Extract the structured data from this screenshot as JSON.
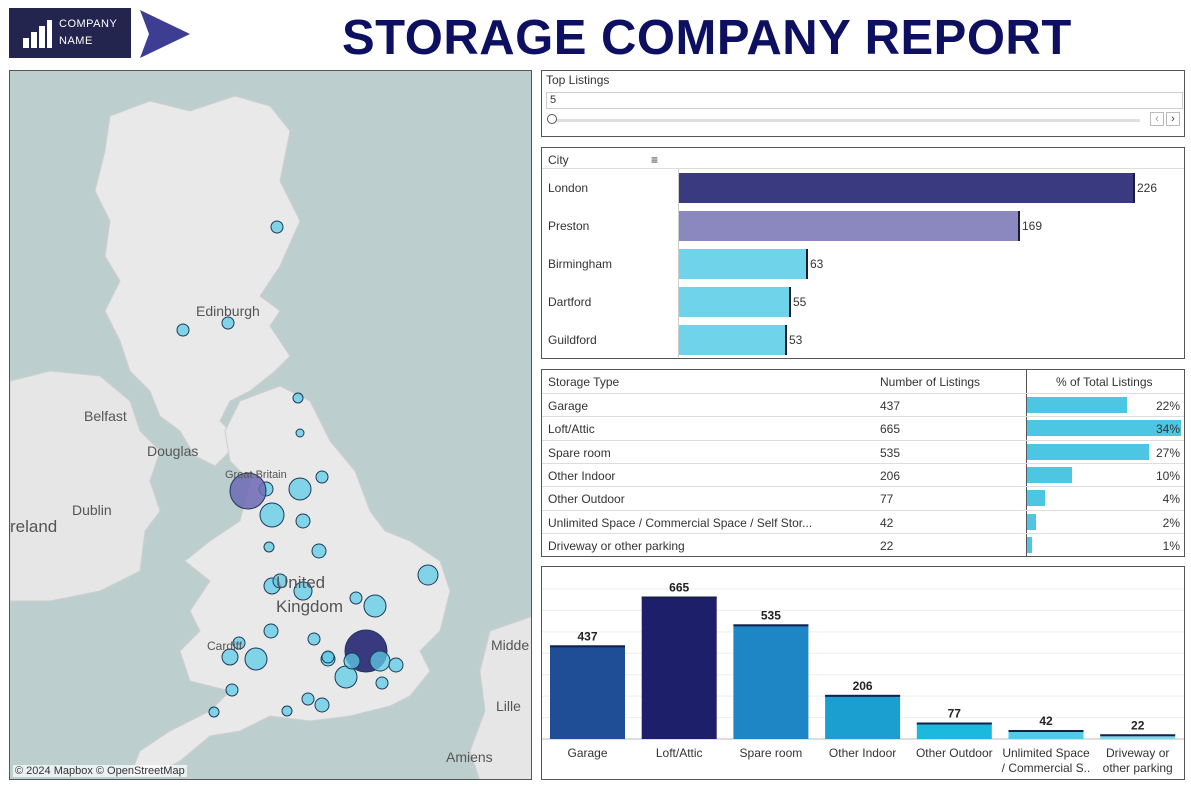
{
  "header": {
    "logo_line1": "COMPANY",
    "logo_line2": "NAME",
    "title": "STORAGE COMPANY REPORT"
  },
  "map": {
    "attribution": "© 2024 Mapbox  © OpenStreetMap",
    "place_labels": [
      "Edinburgh",
      "Belfast",
      "Douglas",
      "Great Britain",
      "Dublin",
      "reland",
      "United",
      "Kingdom",
      "Cardiff",
      "Midde",
      "Lille",
      "Amiens"
    ],
    "colors": {
      "sea": "#bccfce",
      "land": "#e9e9e9",
      "marker_light": "#5ecbe6",
      "marker_mid": "#6d68b4",
      "marker_dark": "#262673"
    }
  },
  "top_listings": {
    "label": "Top Listings",
    "value": "5",
    "prev_icon": "chevron-left-icon",
    "next_icon": "chevron-right-icon"
  },
  "city_chart": {
    "header": "City",
    "sort_icon": "sort-icon",
    "rows": [
      {
        "name": "London",
        "value": 226,
        "color": "#3a3a80"
      },
      {
        "name": "Preston",
        "value": 169,
        "color": "#8b88bf"
      },
      {
        "name": "Birmingham",
        "value": 63,
        "color": "#6fd4ea"
      },
      {
        "name": "Dartford",
        "value": 55,
        "color": "#6fd4ea"
      },
      {
        "name": "Guildford",
        "value": 53,
        "color": "#6fd4ea"
      }
    ]
  },
  "storage_table": {
    "headers": [
      "Storage Type",
      "Number of Listings",
      "% of Total Listings"
    ],
    "rows": [
      {
        "type": "Garage",
        "count": "437",
        "pct": "22%",
        "share": 0.22
      },
      {
        "type": "Loft/Attic",
        "count": "665",
        "pct": "34%",
        "share": 0.34
      },
      {
        "type": "Spare room",
        "count": "535",
        "pct": "27%",
        "share": 0.27
      },
      {
        "type": "Other Indoor",
        "count": "206",
        "pct": "10%",
        "share": 0.1
      },
      {
        "type": "Other Outdoor",
        "count": "77",
        "pct": "4%",
        "share": 0.04
      },
      {
        "type": "Unlimited Space / Commercial Space / Self Stor...",
        "count": "42",
        "pct": "2%",
        "share": 0.02
      },
      {
        "type": "Driveway or other parking",
        "count": "22",
        "pct": "1%",
        "share": 0.01
      }
    ]
  },
  "chart_data": {
    "type": "bar",
    "categories": [
      "Garage",
      "Loft/Attic",
      "Spare room",
      "Other Indoor",
      "Other Outdoor",
      "Unlimited Space / Commercial S..",
      "Driveway or other parking"
    ],
    "category_lines": [
      [
        "Garage"
      ],
      [
        "Loft/Attic"
      ],
      [
        "Spare room"
      ],
      [
        "Other Indoor"
      ],
      [
        "Other Outdoor"
      ],
      [
        "Unlimited Space",
        "/ Commercial S.."
      ],
      [
        "Driveway or",
        "other parking"
      ]
    ],
    "values": [
      437,
      665,
      535,
      206,
      77,
      42,
      22
    ],
    "colors": [
      "#1f4e96",
      "#1e1f6a",
      "#1f86c6",
      "#1a9fd0",
      "#1bb9de",
      "#55c9e7",
      "#7fd7ee"
    ],
    "ylim": [
      0,
      700
    ],
    "grid": true
  }
}
